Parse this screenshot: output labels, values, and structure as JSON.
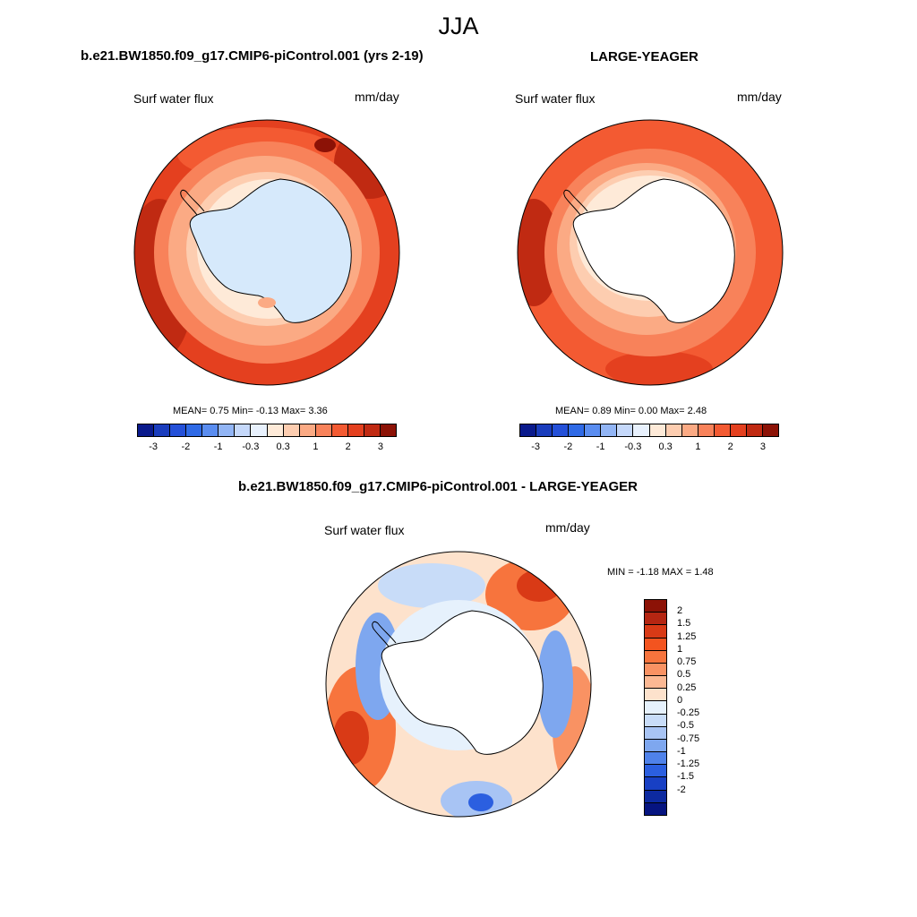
{
  "main_title": "JJA",
  "panels": [
    {
      "title": "b.e21.BW1850.f09_g17.CMIP6-piControl.001 (yrs 2-19)",
      "variable": "Surf water flux",
      "units": "mm/day",
      "stats": "MEAN=   0.75  Min=  -0.13  Max=   3.36",
      "land_fill": "#d6e9fb"
    },
    {
      "title": "LARGE-YEAGER",
      "variable": "Surf water flux",
      "units": "mm/day",
      "stats": "MEAN=   0.89  Min=   0.00  Max=   2.48",
      "land_fill": "#ffffff"
    },
    {
      "title": "b.e21.BW1850.f09_g17.CMIP6-piControl.001 - LARGE-YEAGER",
      "variable": "Surf water flux",
      "units": "mm/day",
      "stats": "MIN =  -1.18 MAX =   1.48",
      "land_fill": "#ffffff"
    }
  ],
  "colorbar_abs": {
    "colors": [
      "#0a1a8c",
      "#1a3dbd",
      "#2450d8",
      "#2f6ae6",
      "#5a8df0",
      "#92b5f5",
      "#c5d8fa",
      "#e8f1fd",
      "#feead8",
      "#fdcdb0",
      "#fbaa84",
      "#f8825a",
      "#f35a32",
      "#e4401f",
      "#c02a12",
      "#8c1206"
    ],
    "tick_labels": [
      "-3",
      "-2",
      "-1",
      "-0.3",
      "0.3",
      "1",
      "2",
      "3"
    ]
  },
  "colorbar_diff": {
    "colors": [
      "#8c1206",
      "#b52612",
      "#d93a16",
      "#f3541f",
      "#f7743d",
      "#f99263",
      "#fbb893",
      "#fde2cc",
      "#e6f1fc",
      "#c8dcf8",
      "#a8c4f4",
      "#7ea7ef",
      "#4f82ea",
      "#2b5fe0",
      "#1840c4",
      "#0d2aa0",
      "#061480"
    ],
    "tick_labels": [
      "2",
      "1.5",
      "1.25",
      "1",
      "0.75",
      "0.5",
      "0.25",
      "0",
      "-0.25",
      "-0.5",
      "-0.75",
      "-1",
      "-1.25",
      "-1.5",
      "-2"
    ]
  },
  "field_colors": {
    "deep_red": "#b52612",
    "red": "#e4401f",
    "orange": "#f8825a",
    "salmon": "#fbaa84",
    "peach": "#feead8",
    "light_blue": "#c8dcf8",
    "blue": "#4f82ea"
  }
}
